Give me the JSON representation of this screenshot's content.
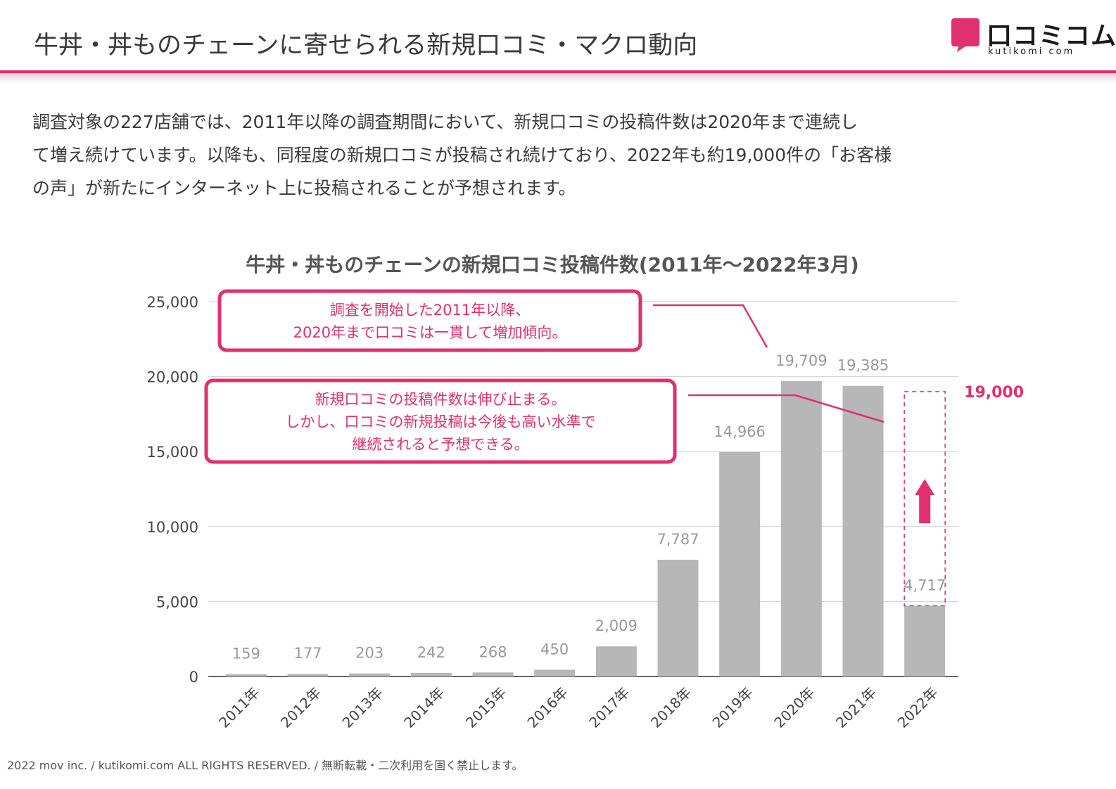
{
  "page_title": "牛丼・丼ものチェーンに寄せられる新規口コミ・マクロ動向",
  "logo": {
    "name": "口コミコム",
    "sub": "kutikomi com"
  },
  "intro": [
    "調査対象の227店舗では、2011年以降の調査期間において、新規口コミの投稿件数は2020年まで連続し",
    "て増え続けています。以降も、同程度の新規口コミが投稿され続けており、2022年も約19,000件の「お客様",
    "の声」が新たにインターネット上に投稿されることが予想されます。"
  ],
  "chart_data": {
    "type": "bar",
    "title": "牛丼・丼ものチェーンの新規口コミ投稿件数(2011年〜2022年3月)",
    "categories": [
      "2011年",
      "2012年",
      "2013年",
      "2014年",
      "2015年",
      "2016年",
      "2017年",
      "2018年",
      "2019年",
      "2020年",
      "2021年",
      "2022年"
    ],
    "values": [
      159,
      177,
      203,
      242,
      268,
      450,
      2009,
      7787,
      14966,
      19709,
      19385,
      4717
    ],
    "data_labels": [
      "159",
      "177",
      "203",
      "242",
      "268",
      "450",
      "2,009",
      "7,787",
      "14,966",
      "19,709",
      "19,385",
      "4,717"
    ],
    "ylim": [
      0,
      25000
    ],
    "y_ticks": [
      0,
      5000,
      10000,
      15000,
      20000,
      25000
    ],
    "y_tick_labels": [
      "0",
      "5,000",
      "10,000",
      "15,000",
      "20,000",
      "25,000"
    ],
    "grid": true,
    "bar_color": "#b7b7b7",
    "accent_color": "#e0306f",
    "forecast": {
      "category": "2022年",
      "value": 19000,
      "label": "19,000"
    },
    "annotations": [
      {
        "lines": [
          "調査を開始した2011年以降、",
          "2020年まで口コミは一貫して増加傾向。"
        ]
      },
      {
        "lines": [
          "新規口コミの投稿件数は伸び止まる。",
          "しかし、口コミの新規投稿は今後も高い水準で",
          "継続されると予想できる。"
        ]
      }
    ]
  },
  "footer": "2022 mov inc. / kutikomi.com ALL RIGHTS RESERVED. / 無断転載・二次利用を固く禁止します。"
}
